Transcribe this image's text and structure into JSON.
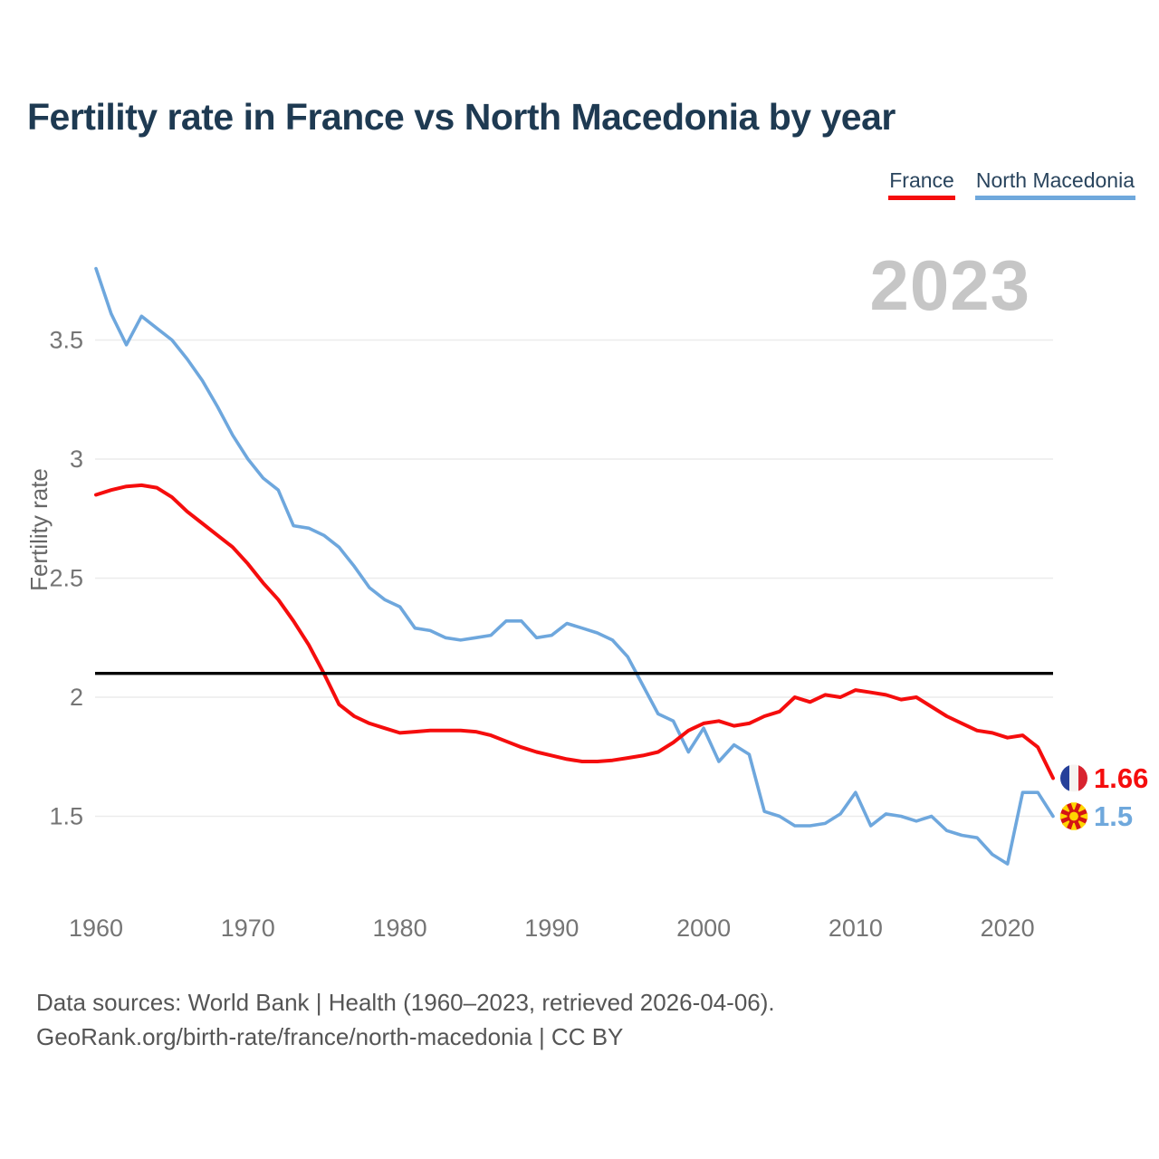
{
  "title": "Fertility rate in France vs North Macedonia by year",
  "watermark_year": "2023",
  "legend": {
    "items": [
      {
        "label": "France",
        "color": "#f50d0d"
      },
      {
        "label": "North Macedonia",
        "color": "#6fa8dc"
      }
    ]
  },
  "chart_data": {
    "type": "line",
    "title": "Fertility rate in France vs North Macedonia by year",
    "xlabel": "",
    "ylabel": "Fertility rate",
    "x_range": [
      1960,
      2023
    ],
    "xticks": [
      1960,
      1970,
      1980,
      1990,
      2000,
      2010,
      2020
    ],
    "yticks": [
      3.5,
      3,
      2.5,
      2,
      1.5
    ],
    "ylim": [
      1.2,
      3.9
    ],
    "grid": "horizontal",
    "legend_position": "top-right",
    "reference_line": {
      "value": 2.1,
      "color": "#000000"
    },
    "years": [
      1960,
      1961,
      1962,
      1963,
      1964,
      1965,
      1966,
      1967,
      1968,
      1969,
      1970,
      1971,
      1972,
      1973,
      1974,
      1975,
      1976,
      1977,
      1978,
      1979,
      1980,
      1981,
      1982,
      1983,
      1984,
      1985,
      1986,
      1987,
      1988,
      1989,
      1990,
      1991,
      1992,
      1993,
      1994,
      1995,
      1996,
      1997,
      1998,
      1999,
      2000,
      2001,
      2002,
      2003,
      2004,
      2005,
      2006,
      2007,
      2008,
      2009,
      2010,
      2011,
      2012,
      2013,
      2014,
      2015,
      2016,
      2017,
      2018,
      2019,
      2020,
      2021,
      2022,
      2023
    ],
    "series": [
      {
        "name": "France",
        "color": "#f50d0d",
        "values": [
          2.85,
          2.87,
          2.885,
          2.89,
          2.88,
          2.84,
          2.78,
          2.73,
          2.68,
          2.63,
          2.56,
          2.48,
          2.41,
          2.32,
          2.22,
          2.1,
          1.97,
          1.92,
          1.89,
          1.87,
          1.85,
          1.855,
          1.86,
          1.86,
          1.86,
          1.855,
          1.84,
          1.815,
          1.79,
          1.77,
          1.755,
          1.74,
          1.73,
          1.73,
          1.735,
          1.745,
          1.755,
          1.77,
          1.81,
          1.86,
          1.89,
          1.9,
          1.88,
          1.89,
          1.92,
          1.94,
          2.0,
          1.98,
          2.01,
          2.0,
          2.03,
          2.02,
          2.01,
          1.99,
          2.0,
          1.96,
          1.92,
          1.89,
          1.86,
          1.85,
          1.83,
          1.84,
          1.79,
          1.66
        ]
      },
      {
        "name": "North Macedonia",
        "color": "#6ea7dd",
        "values": [
          3.8,
          3.61,
          3.48,
          3.6,
          3.55,
          3.5,
          3.42,
          3.33,
          3.22,
          3.1,
          3.0,
          2.92,
          2.87,
          2.72,
          2.71,
          2.68,
          2.63,
          2.55,
          2.46,
          2.41,
          2.38,
          2.29,
          2.28,
          2.25,
          2.24,
          2.25,
          2.26,
          2.32,
          2.32,
          2.25,
          2.26,
          2.31,
          2.29,
          2.27,
          2.24,
          2.17,
          2.05,
          1.93,
          1.9,
          1.77,
          1.87,
          1.73,
          1.8,
          1.76,
          1.52,
          1.5,
          1.46,
          1.46,
          1.47,
          1.51,
          1.6,
          1.46,
          1.51,
          1.5,
          1.48,
          1.5,
          1.44,
          1.42,
          1.41,
          1.34,
          1.3,
          1.6,
          1.6,
          1.5
        ]
      }
    ],
    "end_labels": [
      {
        "series": "France",
        "value": "1.66",
        "color": "#f50d0d"
      },
      {
        "series": "North Macedonia",
        "value": "1.5",
        "color": "#6fa8dc"
      }
    ]
  },
  "footer": {
    "line1": "Data sources: World Bank | Health (1960–2023, retrieved 2026-04-06).",
    "line2": "GeoRank.org/birth-rate/france/north-macedonia | CC BY"
  }
}
